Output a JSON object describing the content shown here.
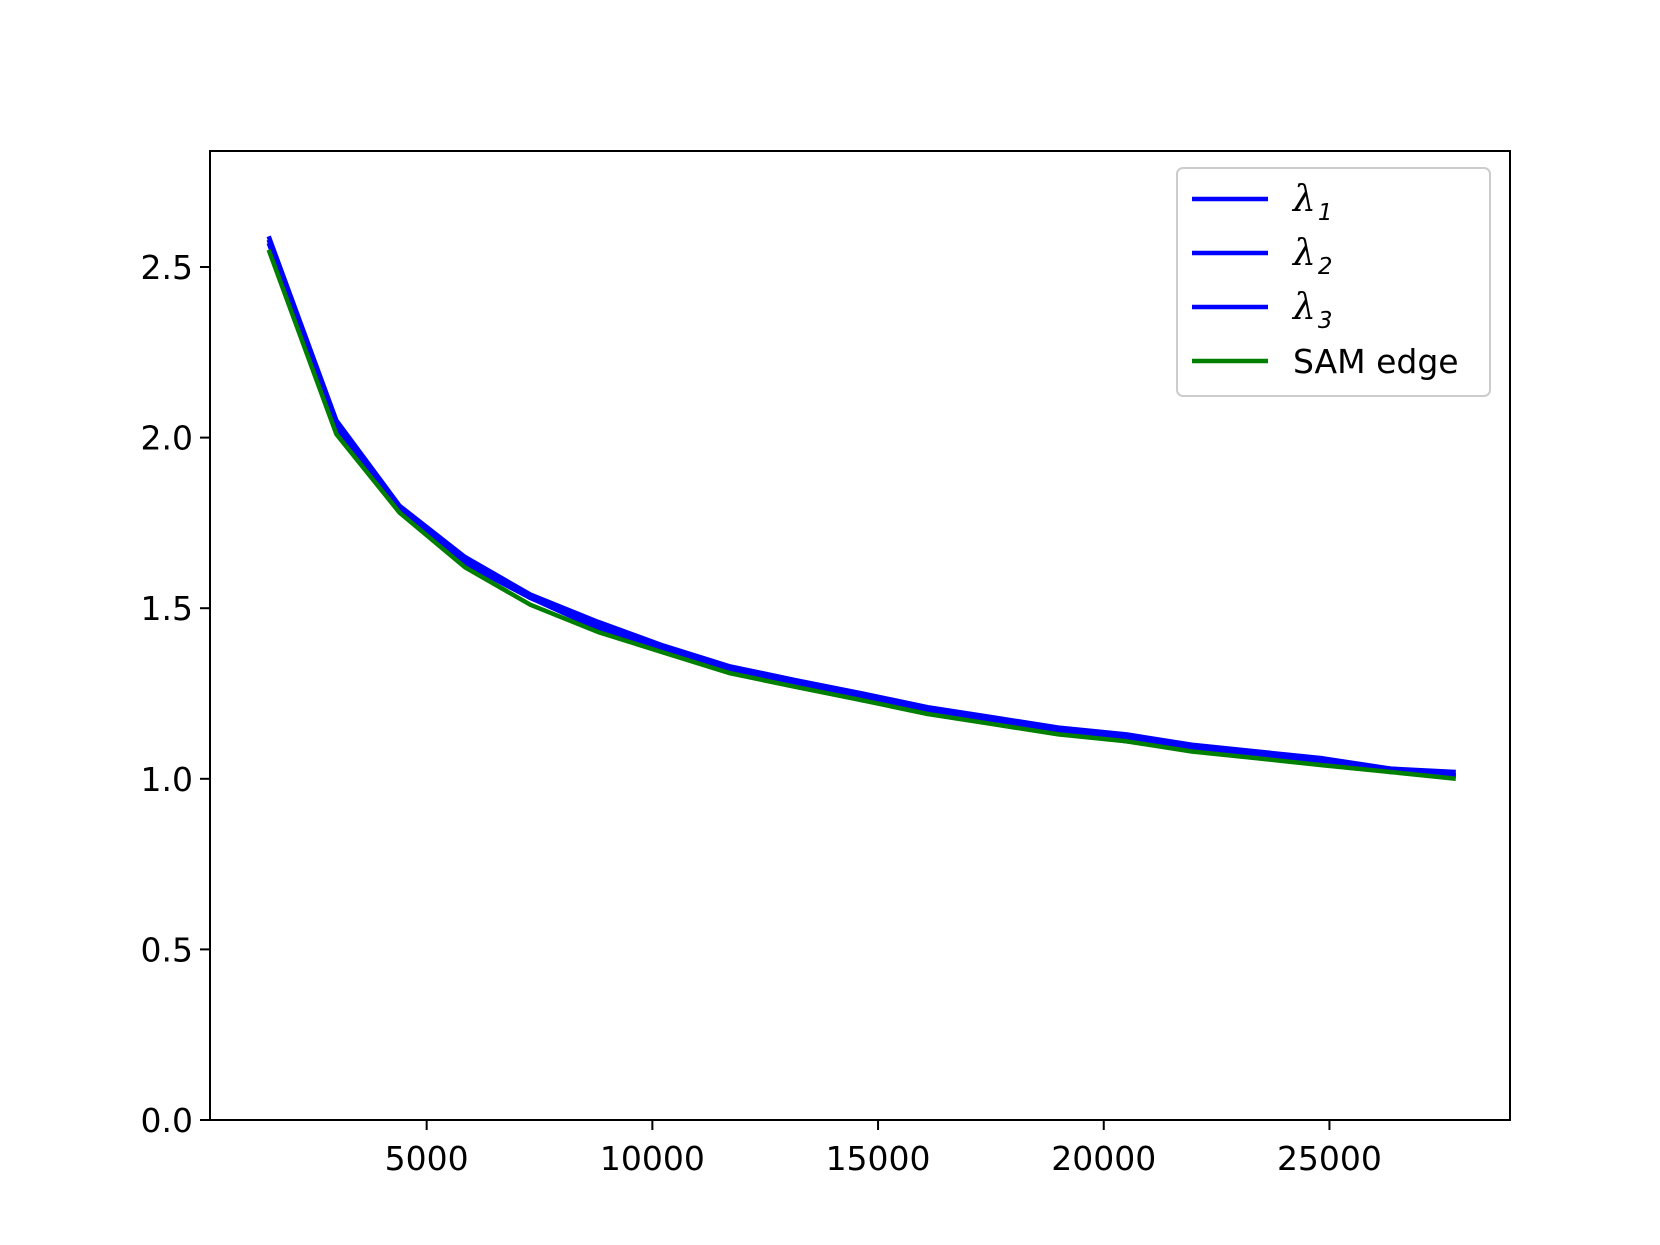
{
  "chart_data": {
    "type": "line",
    "title": "",
    "xlabel": "",
    "ylabel": "",
    "xlim": [
      200,
      29000
    ],
    "ylim": [
      0.0,
      2.84
    ],
    "x_ticks": [
      5000,
      10000,
      15000,
      20000,
      25000
    ],
    "x_tick_labels": [
      "5000",
      "10000",
      "15000",
      "20000",
      "25000"
    ],
    "y_ticks": [
      0.0,
      0.5,
      1.0,
      1.5,
      2.0,
      2.5
    ],
    "y_tick_labels": [
      "0.0",
      "0.5",
      "1.0",
      "1.5",
      "2.0",
      "2.5"
    ],
    "grid": false,
    "legend_position": "top-right",
    "x": [
      1500,
      3000,
      4400,
      5850,
      7300,
      8800,
      10250,
      11700,
      13150,
      14650,
      16100,
      17550,
      19000,
      20500,
      21950,
      23400,
      24850,
      26350,
      27800
    ],
    "series": [
      {
        "name": "λ1",
        "legend_symbol": "λ",
        "legend_sub": "1",
        "color": "#0000ff",
        "values": [
          2.59,
          2.05,
          1.8,
          1.65,
          1.54,
          1.46,
          1.39,
          1.33,
          1.29,
          1.25,
          1.21,
          1.18,
          1.15,
          1.13,
          1.1,
          1.08,
          1.06,
          1.03,
          1.02
        ]
      },
      {
        "name": "λ2",
        "legend_symbol": "λ",
        "legend_sub": "2",
        "color": "#0000ff",
        "values": [
          2.58,
          2.04,
          1.79,
          1.64,
          1.53,
          1.45,
          1.38,
          1.32,
          1.28,
          1.24,
          1.2,
          1.17,
          1.14,
          1.12,
          1.09,
          1.07,
          1.05,
          1.03,
          1.01
        ]
      },
      {
        "name": "λ3",
        "legend_symbol": "λ",
        "legend_sub": "3",
        "color": "#0000ff",
        "values": [
          2.57,
          2.03,
          1.79,
          1.63,
          1.53,
          1.44,
          1.38,
          1.32,
          1.28,
          1.23,
          1.2,
          1.17,
          1.14,
          1.11,
          1.09,
          1.07,
          1.05,
          1.02,
          1.01
        ]
      },
      {
        "name": "SAM edge",
        "color": "#008000",
        "values": [
          2.55,
          2.01,
          1.78,
          1.62,
          1.51,
          1.43,
          1.37,
          1.31,
          1.27,
          1.23,
          1.19,
          1.16,
          1.13,
          1.11,
          1.08,
          1.06,
          1.04,
          1.02,
          1.0
        ]
      }
    ]
  }
}
